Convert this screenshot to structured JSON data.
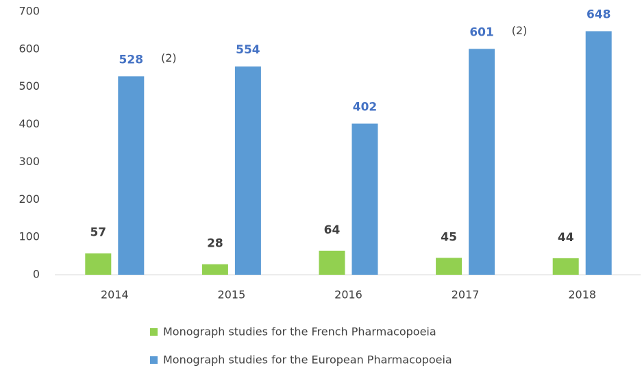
{
  "chart_data": {
    "type": "bar",
    "categories": [
      "2014",
      "2015",
      "2016",
      "2017",
      "2018"
    ],
    "series": [
      {
        "name": "Monograph studies for the French Pharmacopoeia",
        "color": "#92d050",
        "label_color": "#404040",
        "values": [
          57,
          28,
          64,
          45,
          44
        ]
      },
      {
        "name": "Monograph studies for the European Pharmacopoeia",
        "color": "#5b9bd5",
        "label_color": "#4472c4",
        "values": [
          528,
          554,
          402,
          601,
          648
        ]
      }
    ],
    "annotations": [
      "(2)",
      "(2)"
    ],
    "ylim": [
      0,
      700
    ],
    "yticks": [
      0,
      100,
      200,
      300,
      400,
      500,
      600,
      700
    ],
    "grid": false
  }
}
